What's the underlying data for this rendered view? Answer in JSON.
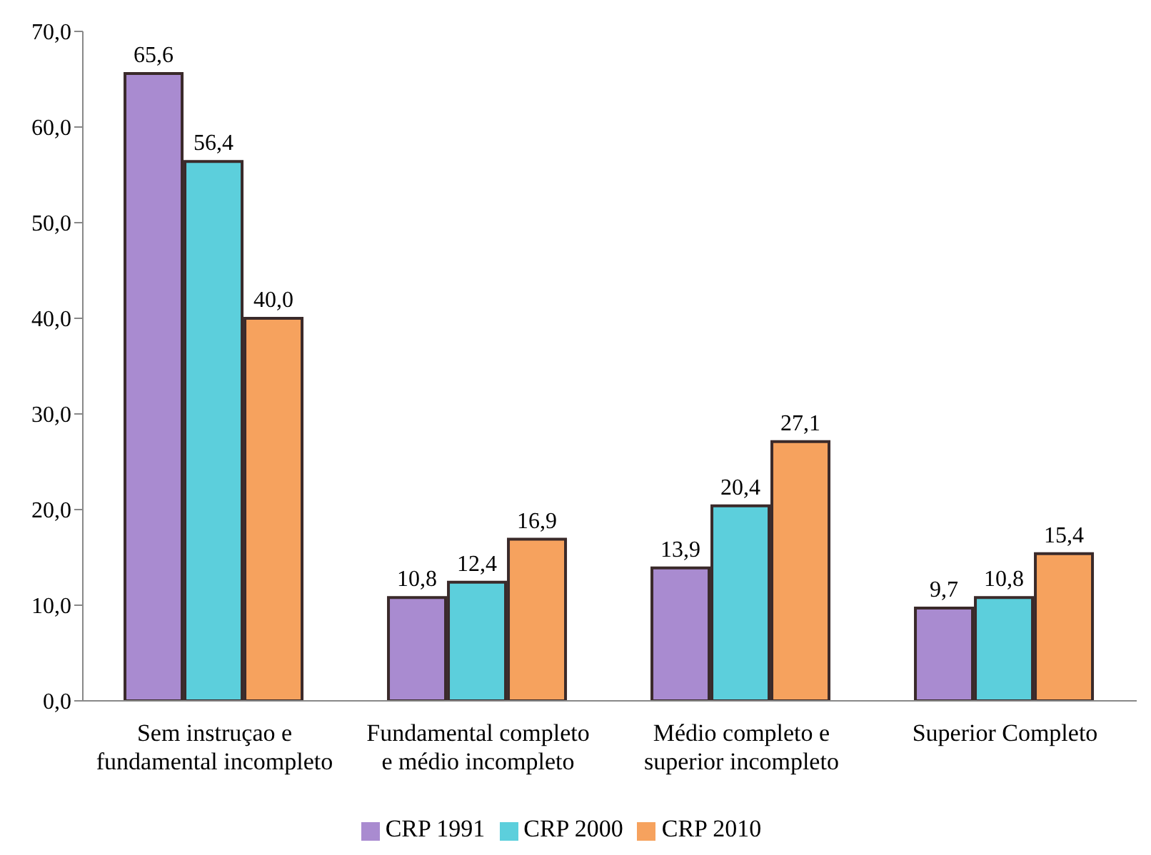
{
  "chart_data": {
    "type": "bar",
    "categories": [
      "Sem instruçao e\nfundamental incompleto",
      "Fundamental completo\ne médio incompleto",
      "Médio completo e\nsuperior incompleto",
      "Superior Completo"
    ],
    "series": [
      {
        "name": "CRP 1991",
        "color": "#a98bd0",
        "values": [
          65.6,
          10.8,
          13.9,
          9.7
        ],
        "value_labels": [
          "65,6",
          "10,8",
          "13,9",
          "9,7"
        ]
      },
      {
        "name": "CRP 2000",
        "color": "#5ccfdc",
        "values": [
          56.4,
          12.4,
          20.4,
          10.8
        ],
        "value_labels": [
          "56,4",
          "12,4",
          "20,4",
          "10,8"
        ]
      },
      {
        "name": "CRP 2010",
        "color": "#f6a25e",
        "values": [
          40.0,
          16.9,
          27.1,
          15.4
        ],
        "value_labels": [
          "40,0",
          "16,9",
          "27,1",
          "15,4"
        ]
      }
    ],
    "ylim": [
      0,
      70
    ],
    "yticks": [
      {
        "value": 0,
        "label": "0,0"
      },
      {
        "value": 10,
        "label": "10,0"
      },
      {
        "value": 20,
        "label": "20,0"
      },
      {
        "value": 30,
        "label": "30,0"
      },
      {
        "value": 40,
        "label": "40,0"
      },
      {
        "value": 50,
        "label": "50,0"
      },
      {
        "value": 60,
        "label": "60,0"
      },
      {
        "value": 70,
        "label": "70,0"
      }
    ],
    "legend": "bottom"
  }
}
